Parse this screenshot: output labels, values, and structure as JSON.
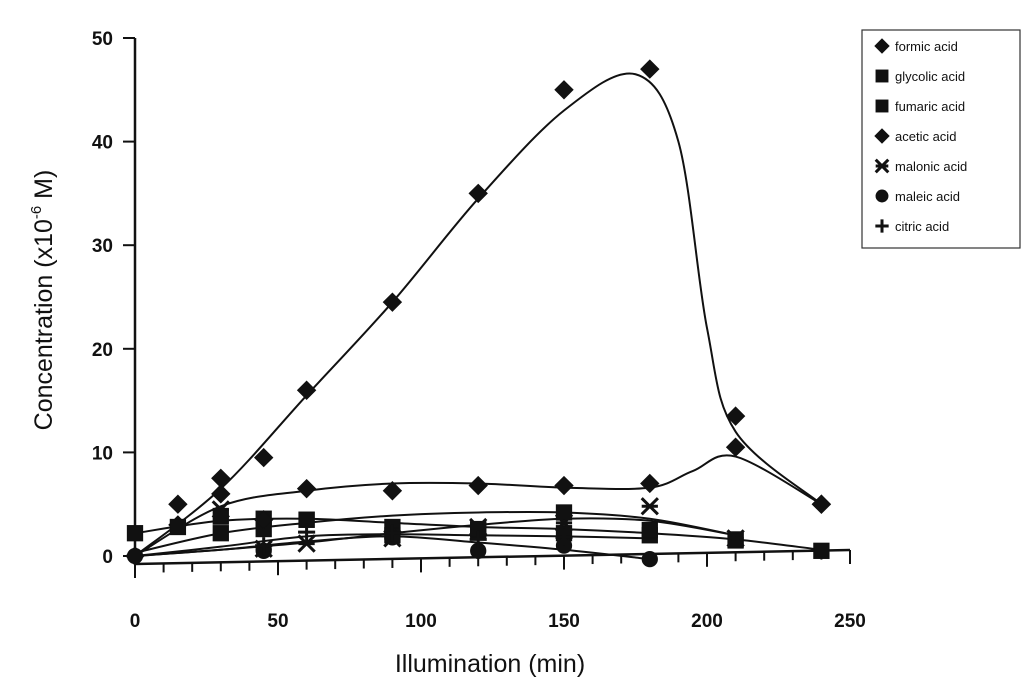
{
  "chart_data": {
    "type": "scatter",
    "title": "",
    "xlabel": "Illumination (min)",
    "ylabel_main": "Concentration (x10",
    "ylabel_exp": "-6",
    "ylabel_unit": " M)",
    "xlim": [
      0,
      250
    ],
    "ylim": [
      0,
      50
    ],
    "x_ticks": [
      0,
      50,
      100,
      150,
      200,
      250
    ],
    "y_ticks": [
      0,
      10,
      20,
      30,
      40,
      50
    ],
    "grid": false,
    "legend_position": "top-right",
    "series": [
      {
        "name": "formic acid",
        "marker": "diamond",
        "x": [
          0,
          15,
          30,
          45,
          60,
          90,
          120,
          150,
          180,
          210,
          240
        ],
        "y": [
          0,
          3,
          7.5,
          9.5,
          16,
          24.5,
          35,
          45,
          47,
          13.5,
          5
        ],
        "curve_x": [
          0,
          30,
          60,
          90,
          120,
          150,
          175,
          190,
          200,
          210,
          240
        ],
        "curve_y": [
          0,
          6.5,
          15.5,
          24.5,
          34.5,
          43,
          46.5,
          40,
          22,
          12,
          5
        ]
      },
      {
        "name": "glycolic acid",
        "marker": "square",
        "x": [
          0,
          15,
          30,
          45,
          60,
          90,
          120,
          150,
          180,
          210,
          240
        ],
        "y": [
          2.2,
          2.8,
          3.8,
          3.6,
          3.5,
          2.8,
          2.5,
          2.2,
          2.0,
          1.6,
          0.5
        ],
        "curve_x": [
          0,
          30,
          60,
          90,
          120,
          150,
          180,
          210,
          240
        ],
        "curve_y": [
          2.2,
          3.4,
          3.6,
          3.2,
          2.8,
          2.6,
          2.2,
          1.6,
          0.6
        ]
      },
      {
        "name": "fumaric acid",
        "marker": "square",
        "x": [
          30,
          45,
          60,
          90,
          120,
          150,
          180,
          210
        ],
        "y": [
          2.2,
          2.6,
          3.5,
          2.0,
          2.6,
          4.2,
          2.5,
          1.5
        ],
        "curve_x": [
          0,
          30,
          60,
          90,
          120,
          150,
          180,
          210
        ],
        "curve_y": [
          0.3,
          2.2,
          3.2,
          3.9,
          4.2,
          4.2,
          3.6,
          2.0
        ]
      },
      {
        "name": "acetic acid",
        "marker": "diamond",
        "x": [
          15,
          30,
          45,
          60,
          90,
          120,
          150,
          180,
          210,
          240
        ],
        "y": [
          5,
          6,
          3.5,
          6.5,
          6.3,
          6.8,
          6.8,
          7.0,
          10.5,
          5
        ],
        "curve_x": [
          0,
          30,
          60,
          90,
          120,
          150,
          180,
          195,
          210,
          240
        ],
        "curve_y": [
          0,
          4.8,
          6.3,
          7.0,
          7.0,
          6.6,
          6.6,
          8.2,
          9.6,
          5
        ]
      },
      {
        "name": "malonic acid",
        "marker": "asterisk",
        "x": [
          30,
          45,
          60,
          90,
          120,
          150,
          180,
          210
        ],
        "y": [
          4.5,
          0.7,
          1.2,
          1.7,
          2.8,
          3.2,
          4.8,
          1.7
        ],
        "curve_x": [
          0,
          30,
          60,
          90,
          120,
          150,
          180,
          210
        ],
        "curve_y": [
          0,
          0.6,
          1.3,
          2.2,
          3.0,
          3.6,
          3.4,
          2.0
        ]
      },
      {
        "name": "maleic acid",
        "marker": "circle",
        "x": [
          0,
          45,
          90,
          120,
          150,
          180
        ],
        "y": [
          0,
          0.5,
          1.8,
          0.5,
          1.0,
          -0.3
        ],
        "curve_x": [
          0,
          30,
          60,
          90,
          120,
          150,
          180
        ],
        "curve_y": [
          0,
          0.6,
          1.4,
          1.9,
          1.3,
          0.6,
          -0.3
        ]
      },
      {
        "name": "citric acid",
        "marker": "plus",
        "x": [
          45,
          60,
          90,
          120,
          150
        ],
        "y": [
          1.0,
          2.3,
          2.2,
          1.6,
          1.8
        ],
        "curve_x": [
          0,
          30,
          60,
          90,
          120,
          150,
          180
        ],
        "curve_y": [
          0,
          0.9,
          1.9,
          2.1,
          2.0,
          1.9,
          1.7
        ]
      }
    ]
  }
}
